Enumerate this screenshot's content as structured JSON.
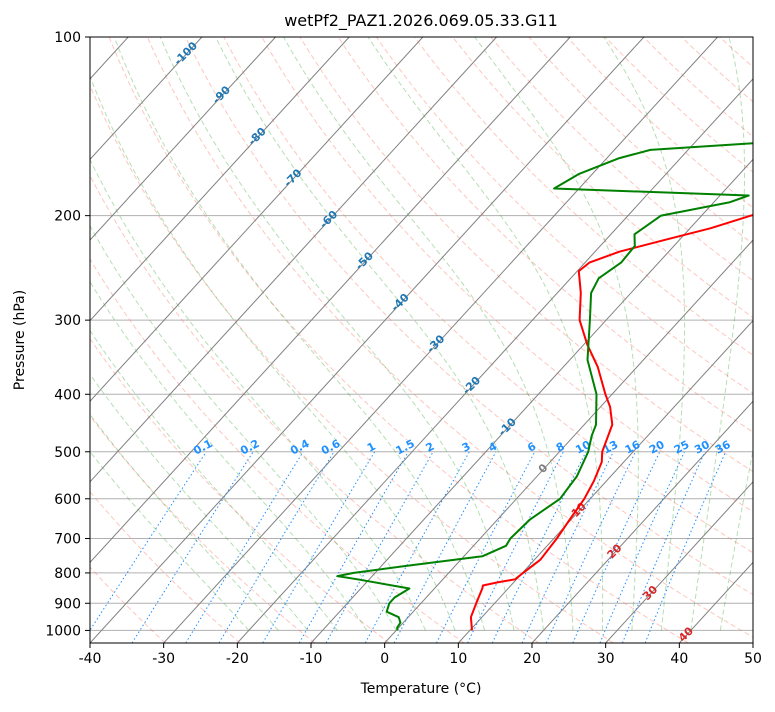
{
  "chart_data": {
    "type": "line",
    "title": "wetPf2_PAZ1.2026.069.05.33.G11",
    "xlabel": "Temperature (°C)",
    "ylabel": "Pressure (hPa)",
    "xlim": [
      -40,
      50
    ],
    "ylim": [
      1050,
      100
    ],
    "y_scale": "log",
    "grid": true,
    "x_ticks": [
      "-40",
      "-30",
      "-20",
      "-10",
      "0",
      "10",
      "20",
      "30",
      "40",
      "50"
    ],
    "y_ticks": [
      "100",
      "200",
      "300",
      "400",
      "500",
      "600",
      "700",
      "800",
      "900",
      "1000"
    ],
    "colors": {
      "temperature": "#ff0000",
      "dewpoint": "#008000",
      "dry_adiabat": "#fa8072",
      "moist_adiabat": "#2ca02c",
      "mixing_ratio": "#1e90ff",
      "isotherm": "#808080",
      "isotherm_label_cold": "#1f77b4",
      "isotherm_label_zero": "#808080",
      "isotherm_label_warm": "#d62728",
      "isobar": "#b0b0b0"
    },
    "series": [
      {
        "key": "temperature",
        "points": [
          [
            10.3,
            1000
          ],
          [
            8.5,
            950
          ],
          [
            7.5,
            900
          ],
          [
            6.5,
            850
          ],
          [
            6.2,
            840
          ],
          [
            7.8,
            830
          ],
          [
            9.8,
            820
          ],
          [
            10.1,
            800
          ],
          [
            10.8,
            760
          ],
          [
            10.4,
            700
          ],
          [
            9.8,
            650
          ],
          [
            9.2,
            600
          ],
          [
            8.3,
            560
          ],
          [
            7.0,
            520
          ],
          [
            5.8,
            500
          ],
          [
            3.8,
            450
          ],
          [
            1.3,
            420
          ],
          [
            -0.9,
            400
          ],
          [
            -5.3,
            360
          ],
          [
            -9.5,
            330
          ],
          [
            -13.6,
            300
          ],
          [
            -16.8,
            270
          ],
          [
            -19.8,
            248
          ],
          [
            -19.4,
            240
          ],
          [
            -16.7,
            230
          ],
          [
            -12.1,
            220
          ],
          [
            -7.2,
            210
          ],
          [
            -3.3,
            200
          ],
          [
            1.4,
            190
          ],
          [
            6.2,
            180
          ],
          [
            12.3,
            170
          ],
          [
            18.3,
            160
          ],
          [
            19.2,
            150
          ],
          [
            18.3,
            140
          ],
          [
            18.7,
            130
          ],
          [
            20.8,
            120
          ],
          [
            22.1,
            110
          ],
          [
            23.1,
            100
          ]
        ]
      },
      {
        "key": "dewpoint",
        "points": [
          [
            0.2,
            1000
          ],
          [
            -0.2,
            990
          ],
          [
            -0.4,
            970
          ],
          [
            -1.3,
            950
          ],
          [
            -3.6,
            930
          ],
          [
            -4.3,
            900
          ],
          [
            -4.3,
            880
          ],
          [
            -3.4,
            850
          ],
          [
            -11.6,
            820
          ],
          [
            -14.7,
            810
          ],
          [
            -12.9,
            800
          ],
          [
            -7.1,
            780
          ],
          [
            2.5,
            750
          ],
          [
            4.4,
            720
          ],
          [
            4.1,
            700
          ],
          [
            4.4,
            650
          ],
          [
            5.9,
            600
          ],
          [
            5.4,
            550
          ],
          [
            3.9,
            500
          ],
          [
            2.4,
            470
          ],
          [
            1.6,
            450
          ],
          [
            -2.1,
            400
          ],
          [
            -7.6,
            350
          ],
          [
            -12.2,
            300
          ],
          [
            -15.4,
            270
          ],
          [
            -16.2,
            255
          ],
          [
            -15.1,
            240
          ],
          [
            -15.3,
            225
          ],
          [
            -16.8,
            215
          ],
          [
            -15.5,
            200
          ],
          [
            -7.9,
            190
          ],
          [
            -6.1,
            185
          ],
          [
            -33.4,
            180
          ],
          [
            -31.8,
            170
          ],
          [
            -28.3,
            160
          ],
          [
            -25.1,
            155
          ],
          [
            -8.7,
            150
          ],
          [
            -5.6,
            140
          ],
          [
            -4.3,
            130
          ],
          [
            -2.8,
            120
          ],
          [
            -0.8,
            110
          ],
          [
            1.3,
            100
          ]
        ]
      }
    ],
    "isotherm_labels": [
      {
        "t": -100,
        "text": "-100"
      },
      {
        "t": -90,
        "text": "-90"
      },
      {
        "t": -80,
        "text": "-80"
      },
      {
        "t": -70,
        "text": "-70"
      },
      {
        "t": -60,
        "text": "-60"
      },
      {
        "t": -50,
        "text": "-50"
      },
      {
        "t": -40,
        "text": "-40"
      },
      {
        "t": -30,
        "text": "-30"
      },
      {
        "t": -20,
        "text": "-20"
      },
      {
        "t": -10,
        "text": "-10"
      },
      {
        "t": 0,
        "text": "0"
      },
      {
        "t": 10,
        "text": "10"
      },
      {
        "t": 20,
        "text": "20"
      },
      {
        "t": 30,
        "text": "30"
      },
      {
        "t": 40,
        "text": "40"
      }
    ],
    "mixing_ratios": [
      {
        "w": 0.1,
        "text": "0.1"
      },
      {
        "w": 0.2,
        "text": "0.2"
      },
      {
        "w": 0.4,
        "text": "0.4"
      },
      {
        "w": 0.6,
        "text": "0.6"
      },
      {
        "w": 1,
        "text": "1"
      },
      {
        "w": 1.5,
        "text": "1.5"
      },
      {
        "w": 2,
        "text": "2"
      },
      {
        "w": 3,
        "text": "3"
      },
      {
        "w": 4,
        "text": "4"
      },
      {
        "w": 6,
        "text": "6"
      },
      {
        "w": 8,
        "text": "8"
      },
      {
        "w": 10,
        "text": "10"
      },
      {
        "w": 13,
        "text": "13"
      },
      {
        "w": 16,
        "text": "16"
      },
      {
        "w": 20,
        "text": "20"
      },
      {
        "w": 25,
        "text": "25"
      },
      {
        "w": 30,
        "text": "30"
      },
      {
        "w": 36,
        "text": "36"
      }
    ]
  }
}
